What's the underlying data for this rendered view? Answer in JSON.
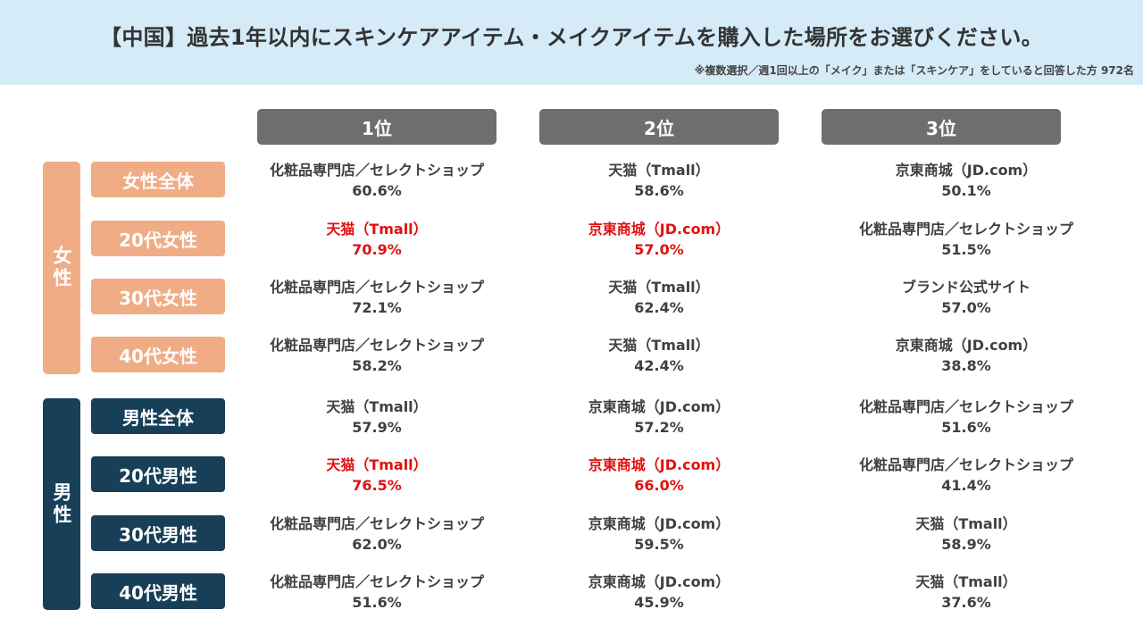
{
  "title": "【中国】過去1年以内にスキンケアアイテム・メイクアイテムを購入した場所をお選びください。",
  "note": "※複数選択／週1回以上の「メイク」または「スキンケア」をしていると回答した方 972名",
  "ranks": [
    "1位",
    "2位",
    "3位"
  ],
  "groups": [
    {
      "label": "女性",
      "rows": [
        {
          "segment": "女性全体",
          "cells": [
            {
              "store": "化粧品専門店／セレクトショップ",
              "pct": "60.6%"
            },
            {
              "store": "天猫（Tmall）",
              "pct": "58.6%"
            },
            {
              "store": "京東商城（JD.com）",
              "pct": "50.1%"
            }
          ]
        },
        {
          "segment": "20代女性",
          "cells": [
            {
              "store": "天猫（Tmall）",
              "pct": "70.9%",
              "highlight": true
            },
            {
              "store": "京東商城（JD.com）",
              "pct": "57.0%",
              "highlight": true
            },
            {
              "store": "化粧品専門店／セレクトショップ",
              "pct": "51.5%"
            }
          ]
        },
        {
          "segment": "30代女性",
          "cells": [
            {
              "store": "化粧品専門店／セレクトショップ",
              "pct": "72.1%"
            },
            {
              "store": "天猫（Tmall）",
              "pct": "62.4%"
            },
            {
              "store": "ブランド公式サイト",
              "pct": "57.0%"
            }
          ]
        },
        {
          "segment": "40代女性",
          "cells": [
            {
              "store": "化粧品専門店／セレクトショップ",
              "pct": "58.2%"
            },
            {
              "store": "天猫（Tmall）",
              "pct": "42.4%"
            },
            {
              "store": "京東商城（JD.com）",
              "pct": "38.8%"
            }
          ]
        }
      ]
    },
    {
      "label": "男性",
      "rows": [
        {
          "segment": "男性全体",
          "cells": [
            {
              "store": "天猫（Tmall）",
              "pct": "57.9%"
            },
            {
              "store": "京東商城（JD.com）",
              "pct": "57.2%"
            },
            {
              "store": "化粧品専門店／セレクトショップ",
              "pct": "51.6%"
            }
          ]
        },
        {
          "segment": "20代男性",
          "cells": [
            {
              "store": "天猫（Tmall）",
              "pct": "76.5%",
              "highlight": true
            },
            {
              "store": "京東商城（JD.com）",
              "pct": "66.0%",
              "highlight": true
            },
            {
              "store": "化粧品専門店／セレクトショップ",
              "pct": "41.4%"
            }
          ]
        },
        {
          "segment": "30代男性",
          "cells": [
            {
              "store": "化粧品専門店／セレクトショップ",
              "pct": "62.0%"
            },
            {
              "store": "京東商城（JD.com）",
              "pct": "59.5%"
            },
            {
              "store": "天猫（Tmall）",
              "pct": "58.9%"
            }
          ]
        },
        {
          "segment": "40代男性",
          "cells": [
            {
              "store": "化粧品専門店／セレクトショップ",
              "pct": "51.6%"
            },
            {
              "store": "京東商城（JD.com）",
              "pct": "45.9%"
            },
            {
              "store": "天猫（Tmall）",
              "pct": "37.6%"
            }
          ]
        }
      ]
    }
  ],
  "colors": {
    "header_bg": "#d5ebf8",
    "rank_header_bg": "#6e6e6e",
    "female": "#f0ac85",
    "male": "#173f58",
    "highlight_text": "#e01010"
  }
}
